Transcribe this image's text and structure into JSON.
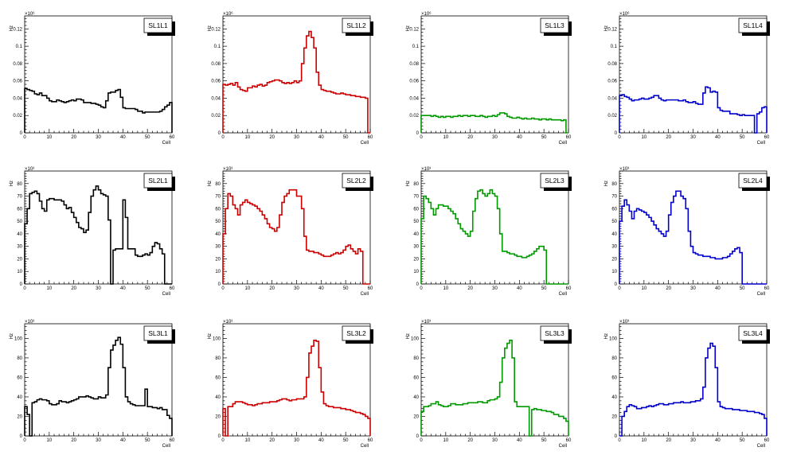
{
  "colors": {
    "black": "#000000",
    "red": "#cc0000",
    "green": "#009900",
    "blue": "#0000cc"
  },
  "chart_data": [
    {
      "type": "bar",
      "style": "step",
      "title": "SL1L1",
      "xlabel": "Cell",
      "ylabel": "Hz",
      "multiplier": "×10⁶",
      "xlim": [
        0,
        60
      ],
      "ylim": [
        0,
        0.135
      ],
      "yticks": [
        0,
        0.02,
        0.04,
        0.06,
        0.08,
        0.1,
        0.12
      ],
      "ytick_labels": [
        "0",
        "0.02",
        "0.04",
        "0.06",
        "0.08",
        "0.1",
        "0.12"
      ],
      "xticks": [
        0,
        10,
        20,
        30,
        40,
        50,
        60
      ],
      "color": "black",
      "values": [
        0.051,
        0.05,
        0.049,
        0.048,
        0.045,
        0.044,
        0.046,
        0.043,
        0.043,
        0.04,
        0.037,
        0.036,
        0.036,
        0.038,
        0.037,
        0.036,
        0.035,
        0.036,
        0.037,
        0.038,
        0.037,
        0.039,
        0.039,
        0.038,
        0.035,
        0.035,
        0.035,
        0.034,
        0.034,
        0.033,
        0.032,
        0.03,
        0.029,
        0.037,
        0.046,
        0.047,
        0.047,
        0.049,
        0.05,
        0.041,
        0.029,
        0.028,
        0.028,
        0.028,
        0.028,
        0.027,
        0.025,
        0.025,
        0.023,
        0.024,
        0.024,
        0.024,
        0.024,
        0.024,
        0.024,
        0.025,
        0.027,
        0.03,
        0.032,
        0.035
      ]
    },
    {
      "type": "bar",
      "style": "step",
      "title": "SL1L2",
      "xlabel": "Cell",
      "ylabel": "Hz",
      "multiplier": "×10⁶",
      "xlim": [
        0,
        60
      ],
      "ylim": [
        0,
        0.135
      ],
      "yticks": [
        0,
        0.02,
        0.04,
        0.06,
        0.08,
        0.1,
        0.12
      ],
      "ytick_labels": [
        "0",
        "0.02",
        "0.04",
        "0.06",
        "0.08",
        "0.1",
        "0.12"
      ],
      "xticks": [
        0,
        10,
        20,
        30,
        40,
        50,
        60
      ],
      "color": "red",
      "values": [
        0.056,
        0.055,
        0.056,
        0.057,
        0.055,
        0.058,
        0.053,
        0.05,
        0.049,
        0.048,
        0.052,
        0.052,
        0.054,
        0.053,
        0.055,
        0.056,
        0.054,
        0.055,
        0.058,
        0.059,
        0.06,
        0.061,
        0.061,
        0.06,
        0.058,
        0.057,
        0.058,
        0.057,
        0.058,
        0.06,
        0.058,
        0.06,
        0.08,
        0.098,
        0.112,
        0.117,
        0.11,
        0.098,
        0.07,
        0.055,
        0.05,
        0.049,
        0.048,
        0.048,
        0.047,
        0.046,
        0.045,
        0.045,
        0.046,
        0.045,
        0.044,
        0.044,
        0.043,
        0.043,
        0.042,
        0.042,
        0.041,
        0.041,
        0.04,
        0.0
      ]
    },
    {
      "type": "bar",
      "style": "step",
      "title": "SL1L3",
      "xlabel": "Cell",
      "ylabel": "Hz",
      "multiplier": "×10⁶",
      "xlim": [
        0,
        60
      ],
      "ylim": [
        0,
        0.135
      ],
      "yticks": [
        0,
        0.02,
        0.04,
        0.06,
        0.08,
        0.1,
        0.12
      ],
      "ytick_labels": [
        "0",
        "0.02",
        "0.04",
        "0.06",
        "0.08",
        "0.1",
        "0.12"
      ],
      "xticks": [
        0,
        10,
        20,
        30,
        40,
        50,
        60
      ],
      "color": "green",
      "values": [
        0.02,
        0.02,
        0.02,
        0.02,
        0.019,
        0.02,
        0.019,
        0.018,
        0.019,
        0.018,
        0.019,
        0.019,
        0.018,
        0.019,
        0.019,
        0.02,
        0.019,
        0.02,
        0.02,
        0.019,
        0.02,
        0.02,
        0.019,
        0.019,
        0.02,
        0.019,
        0.018,
        0.019,
        0.019,
        0.02,
        0.019,
        0.021,
        0.023,
        0.023,
        0.022,
        0.019,
        0.018,
        0.017,
        0.017,
        0.018,
        0.017,
        0.016,
        0.017,
        0.016,
        0.016,
        0.017,
        0.016,
        0.016,
        0.015,
        0.016,
        0.016,
        0.015,
        0.016,
        0.015,
        0.015,
        0.015,
        0.015,
        0.014,
        0.015,
        0.0
      ]
    },
    {
      "type": "bar",
      "style": "step",
      "title": "SL1L4",
      "xlabel": "Cell",
      "ylabel": "Hz",
      "multiplier": "×10⁶",
      "xlim": [
        0,
        60
      ],
      "ylim": [
        0,
        0.135
      ],
      "yticks": [
        0,
        0.02,
        0.04,
        0.06,
        0.08,
        0.1,
        0.12
      ],
      "ytick_labels": [
        "0",
        "0.02",
        "0.04",
        "0.06",
        "0.08",
        "0.1",
        "0.12"
      ],
      "xticks": [
        0,
        10,
        20,
        30,
        40,
        50,
        60
      ],
      "color": "blue",
      "values": [
        0.043,
        0.044,
        0.042,
        0.041,
        0.039,
        0.037,
        0.038,
        0.038,
        0.039,
        0.04,
        0.039,
        0.039,
        0.04,
        0.041,
        0.043,
        0.043,
        0.04,
        0.038,
        0.037,
        0.038,
        0.038,
        0.038,
        0.038,
        0.038,
        0.037,
        0.037,
        0.038,
        0.036,
        0.035,
        0.035,
        0.036,
        0.034,
        0.033,
        0.033,
        0.046,
        0.053,
        0.052,
        0.047,
        0.048,
        0.047,
        0.029,
        0.026,
        0.025,
        0.025,
        0.025,
        0.022,
        0.022,
        0.022,
        0.021,
        0.02,
        0.021,
        0.02,
        0.02,
        0.02,
        0.02,
        0.0,
        0.022,
        0.024,
        0.029,
        0.03
      ]
    },
    {
      "type": "bar",
      "style": "step",
      "title": "SL2L1",
      "xlabel": "Cell",
      "ylabel": "Hz",
      "multiplier": "×10³",
      "xlim": [
        0,
        60
      ],
      "ylim": [
        0,
        90
      ],
      "yticks": [
        0,
        10,
        20,
        30,
        40,
        50,
        60,
        70,
        80
      ],
      "ytick_labels": [
        "0",
        "10",
        "20",
        "30",
        "40",
        "50",
        "60",
        "70",
        "80"
      ],
      "xticks": [
        0,
        10,
        20,
        30,
        40,
        50,
        60
      ],
      "color": "black",
      "values": [
        48,
        60,
        72,
        73,
        74,
        72,
        66,
        60,
        58,
        67,
        68,
        68,
        67,
        67,
        67,
        66,
        63,
        60,
        61,
        57,
        53,
        49,
        45,
        44,
        41,
        43,
        57,
        70,
        75,
        78,
        75,
        72,
        71,
        70,
        51,
        0,
        27,
        28,
        28,
        28,
        67,
        53,
        28,
        28,
        28,
        23,
        22,
        22,
        23,
        24,
        23,
        25,
        30,
        33,
        32,
        28,
        24,
        0,
        0,
        0
      ]
    },
    {
      "type": "bar",
      "style": "step",
      "title": "SL2L2",
      "xlabel": "Cell",
      "ylabel": "Hz",
      "multiplier": "×10³",
      "xlim": [
        0,
        60
      ],
      "ylim": [
        0,
        90
      ],
      "yticks": [
        0,
        10,
        20,
        30,
        40,
        50,
        60,
        70,
        80
      ],
      "ytick_labels": [
        "0",
        "10",
        "20",
        "30",
        "40",
        "50",
        "60",
        "70",
        "80"
      ],
      "xticks": [
        0,
        10,
        20,
        30,
        40,
        50,
        60
      ],
      "color": "red",
      "values": [
        40,
        60,
        72,
        70,
        63,
        60,
        55,
        63,
        65,
        67,
        65,
        64,
        63,
        62,
        60,
        58,
        55,
        52,
        48,
        45,
        44,
        42,
        45,
        55,
        65,
        70,
        72,
        75,
        75,
        75,
        70,
        70,
        60,
        38,
        27,
        26,
        26,
        25,
        25,
        24,
        23,
        22,
        22,
        22,
        23,
        24,
        25,
        24,
        25,
        27,
        30,
        31,
        28,
        26,
        24,
        28,
        26,
        0,
        0,
        0
      ]
    },
    {
      "type": "bar",
      "style": "step",
      "title": "SL2L3",
      "xlabel": "Cell",
      "ylabel": "Hz",
      "multiplier": "×10³",
      "xlim": [
        0,
        60
      ],
      "ylim": [
        0,
        90
      ],
      "yticks": [
        0,
        10,
        20,
        30,
        40,
        50,
        60,
        70,
        80
      ],
      "ytick_labels": [
        "0",
        "10",
        "20",
        "30",
        "40",
        "50",
        "60",
        "70",
        "80"
      ],
      "xticks": [
        0,
        10,
        20,
        30,
        40,
        50,
        60
      ],
      "color": "green",
      "values": [
        52,
        70,
        68,
        65,
        60,
        55,
        60,
        63,
        63,
        62,
        62,
        60,
        58,
        56,
        52,
        48,
        44,
        42,
        40,
        38,
        42,
        58,
        68,
        74,
        75,
        72,
        70,
        72,
        75,
        72,
        70,
        60,
        40,
        26,
        26,
        25,
        24,
        24,
        23,
        22,
        22,
        21,
        21,
        22,
        23,
        24,
        26,
        28,
        30,
        30,
        27,
        0,
        0,
        0,
        0,
        0,
        0,
        0,
        0,
        0
      ]
    },
    {
      "type": "bar",
      "style": "step",
      "title": "SL2L4",
      "xlabel": "Cell",
      "ylabel": "Hz",
      "multiplier": "×10³",
      "xlim": [
        0,
        60
      ],
      "ylim": [
        0,
        90
      ],
      "yticks": [
        0,
        10,
        20,
        30,
        40,
        50,
        60,
        70,
        80
      ],
      "ytick_labels": [
        "0",
        "10",
        "20",
        "30",
        "40",
        "50",
        "60",
        "70",
        "80"
      ],
      "xticks": [
        0,
        10,
        20,
        30,
        40,
        50,
        60
      ],
      "color": "blue",
      "values": [
        50,
        62,
        67,
        63,
        58,
        52,
        58,
        60,
        59,
        58,
        57,
        55,
        53,
        50,
        47,
        44,
        42,
        40,
        38,
        42,
        55,
        65,
        70,
        74,
        74,
        70,
        68,
        60,
        42,
        30,
        25,
        24,
        23,
        23,
        22,
        22,
        22,
        21,
        21,
        20,
        20,
        20,
        21,
        21,
        22,
        24,
        26,
        28,
        29,
        25,
        0,
        0,
        0,
        0,
        0,
        0,
        0,
        0,
        0,
        0
      ]
    },
    {
      "type": "bar",
      "style": "step",
      "title": "SL3L1",
      "xlabel": "Cell",
      "ylabel": "Hz",
      "multiplier": "×10³",
      "xlim": [
        0,
        60
      ],
      "ylim": [
        0,
        115
      ],
      "yticks": [
        0,
        20,
        40,
        60,
        80,
        100
      ],
      "ytick_labels": [
        "0",
        "20",
        "40",
        "60",
        "80",
        "100"
      ],
      "xticks": [
        0,
        10,
        20,
        30,
        40,
        50,
        60
      ],
      "color": "black",
      "values": [
        30,
        22,
        0,
        34,
        35,
        37,
        38,
        37,
        37,
        36,
        33,
        32,
        32,
        33,
        36,
        35,
        35,
        34,
        35,
        36,
        37,
        38,
        40,
        40,
        40,
        41,
        40,
        39,
        38,
        38,
        40,
        39,
        39,
        42,
        70,
        88,
        93,
        98,
        101,
        94,
        70,
        40,
        35,
        33,
        32,
        31,
        31,
        31,
        31,
        48,
        30,
        30,
        29,
        29,
        28,
        29,
        27,
        27,
        21,
        18
      ]
    },
    {
      "type": "bar",
      "style": "step",
      "title": "SL3L2",
      "xlabel": "Cell",
      "ylabel": "Hz",
      "multiplier": "×10³",
      "xlim": [
        0,
        60
      ],
      "ylim": [
        0,
        115
      ],
      "yticks": [
        0,
        20,
        40,
        60,
        80,
        100
      ],
      "ytick_labels": [
        "0",
        "20",
        "40",
        "60",
        "80",
        "100"
      ],
      "xticks": [
        0,
        10,
        20,
        30,
        40,
        50,
        60
      ],
      "color": "red",
      "values": [
        28,
        0,
        30,
        30,
        33,
        35,
        35,
        35,
        34,
        33,
        32,
        32,
        31,
        32,
        33,
        33,
        34,
        34,
        34,
        35,
        35,
        35,
        36,
        37,
        38,
        38,
        37,
        36,
        37,
        37,
        38,
        38,
        38,
        40,
        60,
        85,
        92,
        98,
        97,
        70,
        45,
        33,
        31,
        30,
        30,
        29,
        29,
        29,
        28,
        28,
        27,
        27,
        26,
        25,
        24,
        24,
        23,
        22,
        20,
        18
      ]
    },
    {
      "type": "bar",
      "style": "step",
      "title": "SL3L3",
      "xlabel": "Cell",
      "ylabel": "Hz",
      "multiplier": "×10³",
      "xlim": [
        0,
        60
      ],
      "ylim": [
        0,
        115
      ],
      "yticks": [
        0,
        20,
        40,
        60,
        80,
        100
      ],
      "ytick_labels": [
        "0",
        "20",
        "40",
        "60",
        "80",
        "100"
      ],
      "xticks": [
        0,
        10,
        20,
        30,
        40,
        50,
        60
      ],
      "color": "green",
      "values": [
        25,
        30,
        30,
        31,
        33,
        33,
        35,
        32,
        31,
        30,
        30,
        31,
        33,
        33,
        32,
        32,
        32,
        33,
        33,
        34,
        34,
        34,
        34,
        35,
        35,
        34,
        34,
        36,
        37,
        37,
        38,
        40,
        55,
        80,
        90,
        95,
        98,
        80,
        35,
        30,
        30,
        30,
        30,
        30,
        0,
        27,
        28,
        27,
        27,
        26,
        26,
        25,
        25,
        24,
        22,
        22,
        20,
        20,
        18,
        15
      ]
    },
    {
      "type": "bar",
      "style": "step",
      "title": "SL3L4",
      "xlabel": "Cell",
      "ylabel": "Hz",
      "multiplier": "×10³",
      "xlim": [
        0,
        60
      ],
      "ylim": [
        0,
        115
      ],
      "yticks": [
        0,
        20,
        40,
        60,
        80,
        100
      ],
      "ytick_labels": [
        "0",
        "20",
        "40",
        "60",
        "80",
        "100"
      ],
      "xticks": [
        0,
        10,
        20,
        30,
        40,
        50,
        60
      ],
      "color": "blue",
      "values": [
        0,
        20,
        25,
        30,
        32,
        31,
        30,
        28,
        28,
        29,
        29,
        30,
        31,
        30,
        31,
        32,
        33,
        33,
        32,
        32,
        33,
        33,
        34,
        34,
        34,
        35,
        34,
        34,
        34,
        35,
        35,
        36,
        36,
        38,
        50,
        80,
        90,
        95,
        92,
        70,
        35,
        30,
        29,
        28,
        28,
        28,
        27,
        27,
        27,
        26,
        26,
        26,
        25,
        25,
        25,
        24,
        24,
        23,
        22,
        18
      ]
    }
  ]
}
